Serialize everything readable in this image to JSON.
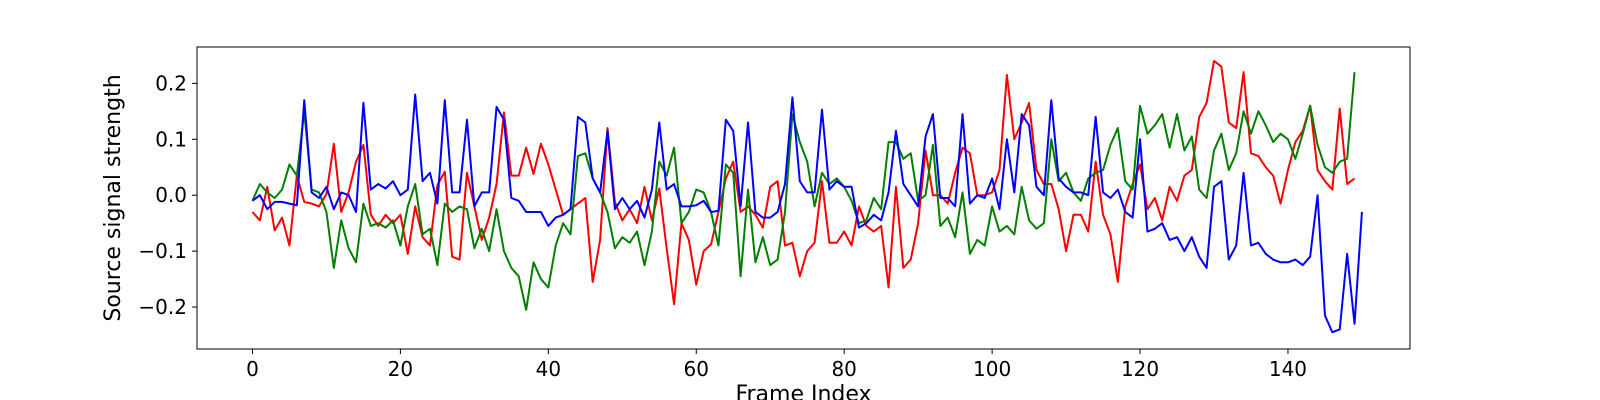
{
  "chart_data": {
    "type": "line",
    "title": "",
    "xlabel": "Frame Index",
    "ylabel": "Source signal strength",
    "xlim": [
      -7.5,
      156.5
    ],
    "ylim": [
      -0.275,
      0.265
    ],
    "xticks": [
      0,
      20,
      40,
      60,
      80,
      100,
      120,
      140
    ],
    "xtick_labels": [
      "0",
      "20",
      "40",
      "60",
      "80",
      "100",
      "120",
      "140"
    ],
    "yticks": [
      -0.2,
      -0.1,
      0.0,
      0.1,
      0.2
    ],
    "ytick_labels": [
      "−0.2",
      "−0.1",
      "0.0",
      "0.1",
      "0.2"
    ],
    "grid": false,
    "series": [
      {
        "color": "#ff0000",
        "values": [
          -0.03,
          -0.045,
          0.015,
          -0.063,
          -0.04,
          -0.09,
          0.035,
          -0.012,
          -0.015,
          -0.02,
          0.002,
          0.092,
          -0.03,
          0.005,
          0.06,
          0.09,
          -0.035,
          -0.055,
          -0.035,
          -0.05,
          -0.035,
          -0.105,
          -0.02,
          -0.075,
          -0.09,
          0.018,
          0.042,
          -0.11,
          -0.115,
          0.04,
          -0.02,
          -0.08,
          -0.04,
          0.02,
          0.148,
          0.035,
          0.035,
          0.085,
          0.038,
          0.092,
          0.055,
          0.01,
          -0.035,
          -0.025,
          -0.015,
          -0.005,
          -0.155,
          -0.08,
          0.12,
          -0.012,
          -0.045,
          -0.025,
          -0.05,
          0.015,
          -0.045,
          0.012,
          -0.095,
          -0.195,
          -0.05,
          -0.08,
          -0.16,
          -0.1,
          -0.088,
          -0.03,
          0.03,
          0.06,
          -0.03,
          -0.02,
          -0.035,
          -0.058,
          0.015,
          0.025,
          -0.09,
          -0.085,
          -0.145,
          -0.1,
          -0.085,
          0.025,
          -0.085,
          -0.085,
          -0.065,
          -0.09,
          -0.02,
          -0.055,
          -0.065,
          -0.055,
          -0.165,
          0.015,
          -0.13,
          -0.115,
          -0.05,
          0.08,
          0.0,
          0.0,
          -0.015,
          0.04,
          0.085,
          0.075,
          0.0,
          0.0,
          0.005,
          0.045,
          0.215,
          0.1,
          0.13,
          0.165,
          0.045,
          0.02,
          0.02,
          -0.025,
          -0.1,
          -0.035,
          -0.035,
          -0.065,
          0.06,
          -0.035,
          -0.07,
          -0.155,
          -0.02,
          0.02,
          0.055,
          -0.025,
          -0.005,
          -0.045,
          0.015,
          -0.01,
          0.035,
          0.045,
          0.14,
          0.165,
          0.24,
          0.23,
          0.13,
          0.12,
          0.22,
          0.075,
          0.07,
          0.05,
          0.035,
          -0.015,
          0.045,
          0.095,
          0.115,
          0.16,
          0.045,
          0.025,
          0.01,
          0.155,
          0.02,
          0.03
        ]
      },
      {
        "color": "#008000",
        "values": [
          -0.01,
          0.02,
          0.005,
          -0.005,
          0.01,
          0.055,
          0.035,
          0.15,
          0.01,
          0.005,
          -0.03,
          -0.13,
          -0.045,
          -0.095,
          -0.12,
          -0.015,
          -0.055,
          -0.05,
          -0.058,
          -0.045,
          -0.09,
          -0.02,
          0.02,
          -0.07,
          -0.06,
          -0.125,
          -0.015,
          -0.03,
          -0.02,
          -0.025,
          -0.095,
          -0.06,
          -0.1,
          -0.025,
          -0.1,
          -0.13,
          -0.145,
          -0.205,
          -0.12,
          -0.15,
          -0.165,
          -0.09,
          -0.05,
          -0.07,
          0.07,
          0.075,
          0.03,
          0.005,
          -0.03,
          -0.095,
          -0.075,
          -0.085,
          -0.065,
          -0.125,
          -0.065,
          0.06,
          0.035,
          0.085,
          -0.05,
          -0.03,
          0.01,
          0.005,
          -0.03,
          -0.09,
          0.055,
          0.04,
          -0.145,
          0.01,
          -0.12,
          -0.075,
          -0.125,
          -0.115,
          -0.03,
          0.145,
          0.095,
          0.06,
          -0.02,
          0.04,
          0.02,
          0.03,
          0.015,
          -0.01,
          -0.05,
          -0.045,
          -0.005,
          -0.025,
          0.095,
          0.095,
          0.065,
          0.075,
          -0.01,
          0.0,
          0.09,
          -0.055,
          -0.04,
          -0.075,
          0.005,
          -0.105,
          -0.08,
          -0.09,
          -0.02,
          -0.065,
          -0.055,
          -0.07,
          0.015,
          -0.045,
          -0.06,
          -0.05,
          0.1,
          0.025,
          0.04,
          0.005,
          -0.01,
          0.03,
          0.04,
          0.045,
          0.09,
          0.12,
          0.025,
          0.01,
          0.16,
          0.11,
          0.125,
          0.145,
          0.085,
          0.145,
          0.08,
          0.105,
          0.01,
          -0.005,
          0.08,
          0.11,
          0.045,
          0.075,
          0.15,
          0.11,
          0.15,
          0.125,
          0.095,
          0.11,
          0.1,
          0.065,
          0.11,
          0.16,
          0.09,
          0.05,
          0.04,
          0.06,
          0.065,
          0.22
        ]
      },
      {
        "color": "#0000ff",
        "values": [
          -0.01,
          0.0,
          -0.025,
          -0.012,
          -0.012,
          -0.015,
          -0.018,
          0.17,
          0.005,
          -0.005,
          0.015,
          -0.025,
          0.005,
          0.0,
          -0.03,
          0.165,
          0.01,
          0.02,
          0.012,
          0.025,
          0.0,
          0.01,
          0.18,
          0.025,
          0.04,
          -0.015,
          0.17,
          0.005,
          0.005,
          0.135,
          -0.02,
          0.005,
          0.005,
          0.158,
          0.135,
          -0.005,
          -0.01,
          -0.03,
          -0.03,
          -0.03,
          -0.055,
          -0.04,
          -0.035,
          -0.025,
          0.14,
          0.13,
          0.03,
          0.005,
          0.115,
          -0.025,
          -0.005,
          -0.025,
          -0.01,
          -0.04,
          0.01,
          0.13,
          0.01,
          0.02,
          -0.02,
          -0.02,
          -0.018,
          -0.01,
          -0.03,
          -0.028,
          0.135,
          0.115,
          -0.02,
          0.13,
          -0.03,
          -0.04,
          -0.04,
          -0.03,
          0.02,
          0.175,
          0.025,
          0.005,
          0.005,
          0.153,
          0.01,
          0.025,
          0.015,
          0.015,
          -0.058,
          -0.05,
          -0.035,
          -0.045,
          0.005,
          0.115,
          0.02,
          0.0,
          -0.02,
          0.105,
          0.145,
          -0.005,
          -0.005,
          -0.02,
          0.145,
          -0.015,
          0.0,
          -0.005,
          0.03,
          -0.025,
          0.1,
          0.005,
          0.145,
          0.125,
          0.015,
          0.0,
          0.17,
          0.03,
          0.015,
          0.005,
          0.005,
          0.0,
          0.14,
          0.005,
          -0.005,
          0.01,
          -0.03,
          -0.04,
          0.1,
          -0.065,
          -0.06,
          -0.05,
          -0.08,
          -0.075,
          -0.1,
          -0.075,
          -0.11,
          -0.13,
          0.015,
          0.025,
          -0.115,
          -0.09,
          0.04,
          -0.09,
          -0.085,
          -0.105,
          -0.115,
          -0.12,
          -0.12,
          -0.115,
          -0.125,
          -0.11,
          0.0,
          -0.215,
          -0.245,
          -0.24,
          -0.105,
          -0.23,
          -0.03
        ]
      }
    ]
  }
}
